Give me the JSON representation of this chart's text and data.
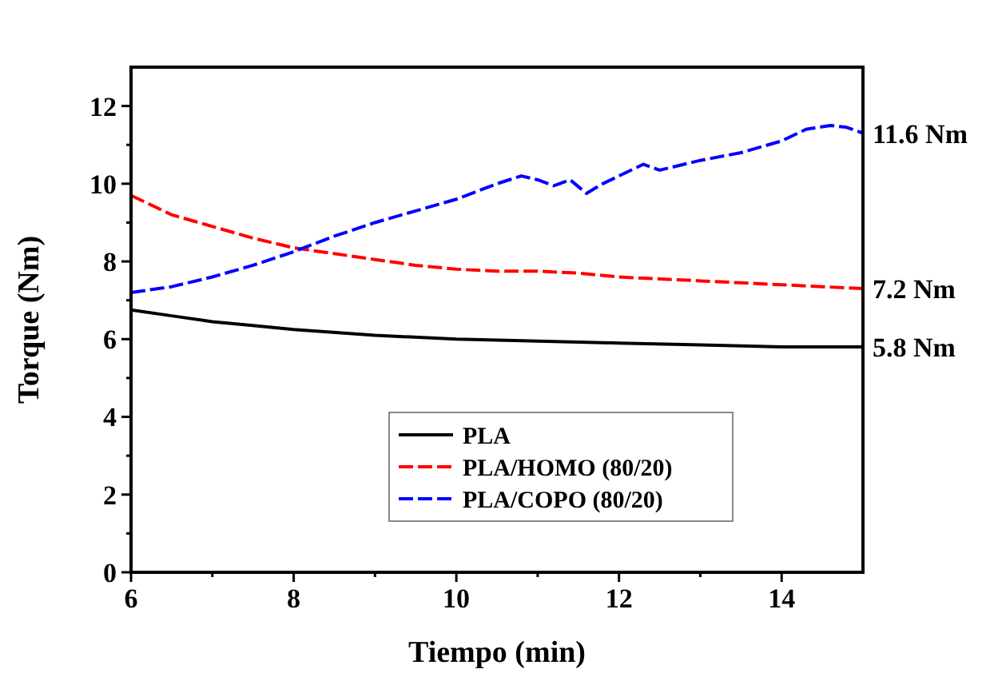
{
  "chart_data": {
    "type": "line",
    "xlabel": "Tiempo (min)",
    "ylabel": "Torque (Nm)",
    "xlim": [
      6,
      15
    ],
    "ylim": [
      0,
      13
    ],
    "xticks": [
      6,
      {
        "value": 7,
        "label": null
      },
      8,
      {
        "value": 9,
        "label": null
      },
      10,
      {
        "value": 11,
        "label": null
      },
      12,
      {
        "value": 13,
        "label": null
      },
      14
    ],
    "yticks": [
      0,
      {
        "value": 1,
        "label": null
      },
      2,
      {
        "value": 3,
        "label": null
      },
      4,
      {
        "value": 5,
        "label": null
      },
      6,
      {
        "value": 7,
        "label": null
      },
      8,
      {
        "value": 9,
        "label": null
      },
      10,
      {
        "value": 11,
        "label": null
      },
      12
    ],
    "grid": false,
    "legend": "bottom",
    "series": [
      {
        "name": "PLA",
        "color": "#000000",
        "line_style": "solid",
        "x": [
          6,
          6.5,
          7,
          7.5,
          8,
          9,
          10,
          11,
          12,
          13,
          14,
          15
        ],
        "values": [
          6.75,
          6.6,
          6.45,
          6.35,
          6.25,
          6.1,
          6.0,
          5.95,
          5.9,
          5.85,
          5.8,
          5.8
        ]
      },
      {
        "name": "PLA/HOMO (80/20)",
        "color": "#ff0000",
        "line_style": "dashed",
        "x": [
          6,
          6.5,
          7,
          7.5,
          8,
          8.5,
          9,
          9.5,
          10,
          10.5,
          11,
          11.5,
          12,
          12.5,
          13,
          13.5,
          14,
          14.5,
          15
        ],
        "values": [
          9.7,
          9.2,
          8.9,
          8.6,
          8.35,
          8.2,
          8.05,
          7.9,
          7.8,
          7.75,
          7.75,
          7.7,
          7.6,
          7.55,
          7.5,
          7.45,
          7.4,
          7.35,
          7.3
        ]
      },
      {
        "name": "PLA/COPO (80/20)",
        "color": "#0000ff",
        "line_style": "dashed",
        "x": [
          6,
          6.5,
          7,
          7.5,
          8,
          8.5,
          9,
          9.5,
          10,
          10.5,
          10.8,
          11,
          11.2,
          11.4,
          11.6,
          11.8,
          12,
          12.3,
          12.5,
          13,
          13.5,
          14,
          14.3,
          14.6,
          14.8,
          15
        ],
        "values": [
          7.2,
          7.35,
          7.6,
          7.9,
          8.25,
          8.65,
          9.0,
          9.3,
          9.6,
          10.0,
          10.2,
          10.1,
          9.95,
          10.1,
          9.75,
          10.0,
          10.2,
          10.5,
          10.35,
          10.6,
          10.8,
          11.1,
          11.4,
          11.5,
          11.45,
          11.3
        ]
      }
    ],
    "annotations": [
      "11.6 Nm",
      "7.2 Nm",
      "5.8 Nm"
    ]
  }
}
